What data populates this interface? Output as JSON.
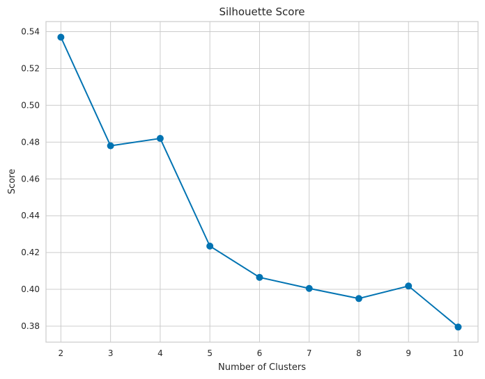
{
  "chart_data": {
    "type": "line",
    "title": "Silhouette Score",
    "xlabel": "Number of Clusters",
    "ylabel": "Score",
    "x": [
      2,
      3,
      4,
      5,
      6,
      7,
      8,
      9,
      10
    ],
    "series": [
      {
        "values": [
          0.537,
          0.478,
          0.482,
          0.4235,
          0.4065,
          0.4005,
          0.395,
          0.4018,
          0.3795
        ],
        "color": "#0173b2",
        "marker": "circle"
      }
    ],
    "xlim": [
      1.7,
      10.4
    ],
    "ylim": [
      0.3713,
      0.5455
    ],
    "xticks": [
      2,
      3,
      4,
      5,
      6,
      7,
      8,
      9,
      10
    ],
    "yticks": [
      "0.38",
      "0.40",
      "0.42",
      "0.44",
      "0.46",
      "0.48",
      "0.50",
      "0.52",
      "0.54"
    ],
    "grid": true
  }
}
